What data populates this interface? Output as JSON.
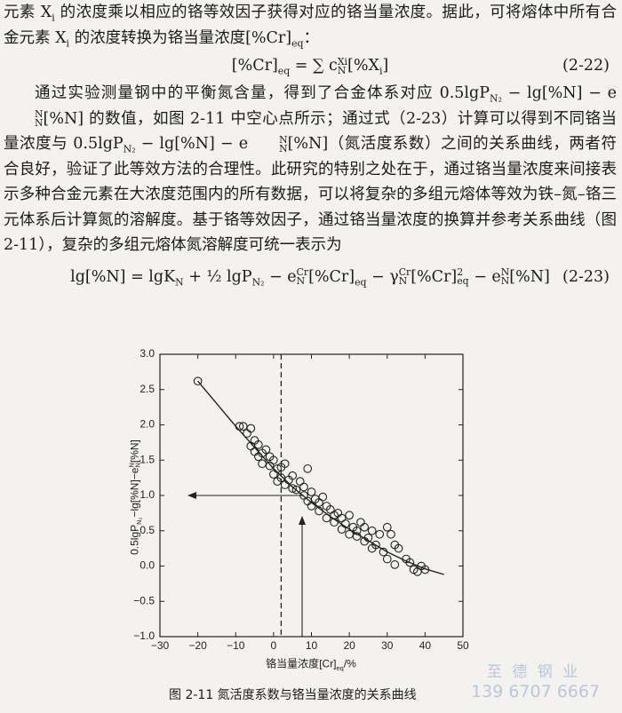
{
  "paragraph_1": [
    "元素 ",
    {
      "base": "X",
      "sub": "i"
    },
    " 的浓度乘以相应的铬等效因子获得对应的铬当量浓度。据此，可将熔体中所有合金元素 ",
    {
      "base": "X",
      "sub": "i"
    },
    " 的浓度转换为铬当量浓度",
    {
      "base": "[%Cr]",
      "sub": "eq"
    },
    "："
  ],
  "equation_1": {
    "parts": [
      {
        "base": "[%Cr]",
        "sub": "eq"
      },
      " = ∑ ",
      {
        "base": "c",
        "sub": "N",
        "sup": "Xi"
      },
      {
        "base": "[%X",
        "sub": "i"
      },
      "]"
    ],
    "number": "(2-22)"
  },
  "paragraph_2": [
    "通过实验测量钢中的平衡氮含量，得到了合金体系对应 0.5lg",
    {
      "base": "P",
      "sub": "N₂"
    },
    " − lg[%N] − ",
    {
      "base": "e",
      "sub": "N",
      "sup": "N"
    },
    "[%N] 的数值，如图 2-11 中空心点所示；通过式（2-23）计算可以得到不同铬当量浓度与 0.5lg",
    {
      "base": "P",
      "sub": "N₂"
    },
    " − lg[%N] − ",
    {
      "base": "e",
      "sub": "N",
      "sup": "N"
    },
    "[%N]（氮活度系数）之间的关系曲线，两者符合良好，验证了此等效方法的合理性。此研究的特别之处在于，通过铬当量浓度来间接表示多种合金元素在大浓度范围内的所有数据，可以将复杂的多组元熔体等效为铁–氮–铬三元体系后计算氮的溶解度。基于铬等效因子，通过铬当量浓度的换算并参考关系曲线（图 2-11），复杂的多组元熔体氮溶解度可统一表示为"
  ],
  "equation_2": {
    "parts": [
      "lg[%N] = lg",
      {
        "base": "K",
        "sub": "N"
      },
      " + ½ lg",
      {
        "base": "P",
        "sub": "N₂"
      },
      " − ",
      {
        "base": "e",
        "sub": "N",
        "sup": "Cr"
      },
      {
        "base": "[%Cr]",
        "sub": "eq"
      },
      " − ",
      {
        "base": "γ",
        "sub": "N",
        "sup": "Cr"
      },
      {
        "base": "[%Cr]",
        "sub": "eq",
        "sup": "2"
      },
      " − ",
      {
        "base": "e",
        "sub": "N",
        "sup": "N"
      },
      "[%N]"
    ],
    "number": "(2-23)"
  },
  "figure": {
    "chart_data": {
      "type": "scatter",
      "x_label": [
        "铬当量浓度",
        {
          "base": "[Cr]",
          "sub": "eq"
        },
        "/%"
      ],
      "y_label": [
        "0.5lg",
        {
          "base": "P",
          "sub": "N₂"
        },
        "−lg[%N]−",
        {
          "base": "e",
          "sub": "N",
          "sup": "N"
        },
        "[%N]"
      ],
      "xlim": [
        -30,
        50
      ],
      "ylim": [
        -1,
        3
      ],
      "xticks": [
        {
          "value": -30,
          "label": "−30"
        },
        {
          "value": -20,
          "label": "−20"
        },
        {
          "value": -10,
          "label": "−10"
        },
        0,
        10,
        20,
        30,
        40,
        50
      ],
      "yticks": [
        {
          "value": -1,
          "label": "−1.0"
        },
        {
          "value": -0.5,
          "label": "−0.5"
        },
        {
          "value": 0,
          "label": "0.0"
        },
        {
          "value": 0.5,
          "label": "0.5"
        },
        {
          "value": 1,
          "label": "1.0"
        },
        {
          "value": 1.5,
          "label": "1.5"
        },
        {
          "value": 2,
          "label": "2.0"
        },
        {
          "value": 2.5,
          "label": "2.5"
        },
        {
          "value": 3,
          "label": "3.0"
        }
      ],
      "reference_x": 2,
      "points": {
        "x": [
          -20,
          -9,
          -8,
          -7,
          -6,
          -5,
          -4,
          -6,
          -5,
          -3,
          -2,
          -4,
          -1,
          -3,
          0,
          -1,
          1,
          2,
          3,
          0,
          2,
          4,
          3,
          5,
          1,
          6,
          5,
          7,
          8,
          9,
          8,
          10,
          9,
          11,
          12,
          10,
          13,
          14,
          12,
          15,
          16,
          14,
          17,
          18,
          16,
          19,
          20,
          18,
          21,
          22,
          20,
          23,
          24,
          22,
          25,
          26,
          24,
          27,
          28,
          26,
          29,
          30,
          31,
          30,
          32,
          33,
          32,
          35,
          36,
          37,
          39,
          40,
          38
        ],
        "y": [
          2.62,
          1.98,
          1.98,
          1.88,
          1.95,
          1.78,
          1.72,
          1.7,
          1.62,
          1.6,
          1.65,
          1.55,
          1.55,
          1.45,
          1.5,
          1.42,
          1.38,
          1.4,
          1.45,
          1.3,
          1.25,
          1.22,
          1.15,
          1.1,
          1.2,
          1.08,
          1.28,
          1.2,
          1.12,
          1.38,
          1.0,
          1.05,
          0.92,
          0.95,
          0.9,
          0.85,
          0.98,
          0.85,
          0.78,
          0.8,
          0.72,
          0.68,
          0.75,
          0.68,
          0.62,
          0.6,
          0.72,
          0.52,
          0.55,
          0.5,
          0.45,
          0.62,
          0.55,
          0.42,
          0.4,
          0.5,
          0.35,
          0.3,
          0.45,
          0.25,
          0.2,
          0.55,
          0.45,
          0.1,
          0.3,
          0.25,
          0.02,
          0.1,
          0.05,
          -0.05,
          0.0,
          -0.05,
          -0.08
        ]
      },
      "curve": {
        "x": [
          -20,
          -10,
          0,
          5,
          10,
          15,
          20,
          25,
          30,
          35,
          40,
          45
        ],
        "y": [
          2.62,
          1.98,
          1.38,
          1.12,
          0.9,
          0.7,
          0.52,
          0.36,
          0.2,
          0.07,
          -0.04,
          -0.12
        ]
      },
      "color": "#222222"
    },
    "caption": "图 2-11   氮活度系数与铬当量浓度的关系曲线"
  },
  "watermark": {
    "name": "至 德 钢 业",
    "phone": "139 6707 6667"
  }
}
